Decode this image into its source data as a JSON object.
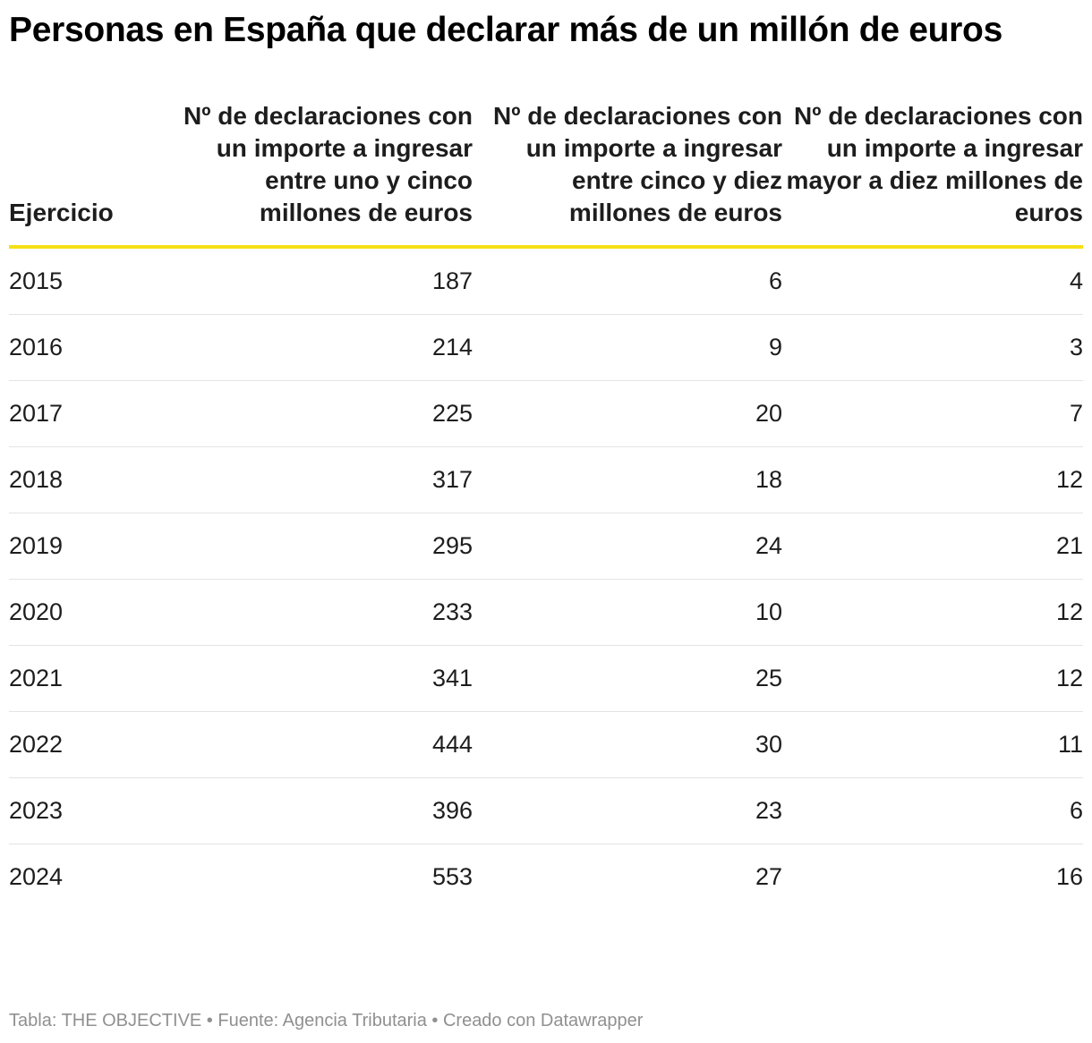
{
  "chart_data": {
    "type": "table",
    "title": "Personas en España que declarar más de un millón de euros",
    "columns": [
      "Ejercicio",
      "Nº de declaraciones con un importe a ingresar entre uno y cinco millones de euros",
      "Nº de declaraciones con un importe a ingresar entre cinco y diez millones de euros",
      "Nº de declaraciones con un importe a ingresar mayor a diez millones de euros"
    ],
    "rows": [
      [
        "2015",
        "187",
        "6",
        "4"
      ],
      [
        "2016",
        "214",
        "9",
        "3"
      ],
      [
        "2017",
        "225",
        "20",
        "7"
      ],
      [
        "2018",
        "317",
        "18",
        "12"
      ],
      [
        "2019",
        "295",
        "24",
        "21"
      ],
      [
        "2020",
        "233",
        "10",
        "12"
      ],
      [
        "2021",
        "341",
        "25",
        "12"
      ],
      [
        "2022",
        "444",
        "30",
        "11"
      ],
      [
        "2023",
        "396",
        "23",
        "6"
      ],
      [
        "2024",
        "553",
        "27",
        "16"
      ]
    ],
    "footer": "Tabla: THE OBJECTIVE • Fuente: Agencia Tributaria • Creado con Datawrapper",
    "colors": {
      "header_rule": "#f5e015",
      "row_rule": "#e3e3e3",
      "footer_text": "#909090"
    }
  }
}
